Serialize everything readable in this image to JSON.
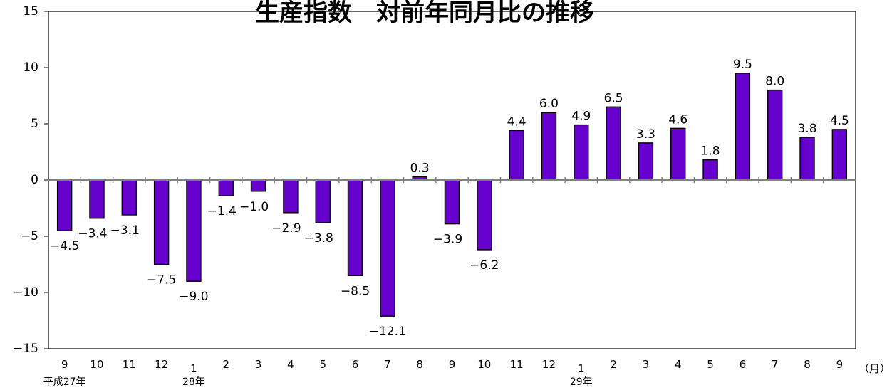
{
  "chart_data": {
    "type": "bar",
    "title": "生産指数　対前年同月比の推移",
    "categories": [
      "9",
      "10",
      "11",
      "12",
      "1",
      "2",
      "3",
      "4",
      "5",
      "6",
      "7",
      "8",
      "9",
      "10",
      "11",
      "12",
      "1",
      "2",
      "3",
      "4",
      "5",
      "6",
      "7",
      "8",
      "9"
    ],
    "values": [
      -4.5,
      -3.4,
      -3.1,
      -7.5,
      -9.0,
      -1.4,
      -1.0,
      -2.9,
      -3.8,
      -8.5,
      -12.1,
      0.3,
      -3.9,
      -6.2,
      4.4,
      6.0,
      4.9,
      6.5,
      3.3,
      4.6,
      1.8,
      9.5,
      8.0,
      3.8,
      4.5
    ],
    "value_labels": [
      "−4.5",
      "−3.4",
      "−3.1",
      "−7.5",
      "−9.0",
      "−1.4",
      "−1.0",
      "−2.9",
      "−3.8",
      "−8.5",
      "−12.1",
      "0.3",
      "−3.9",
      "−6.2",
      "4.4",
      "6.0",
      "4.9",
      "6.5",
      "3.3",
      "4.6",
      "1.8",
      "9.5",
      "8.0",
      "3.8",
      "4.5"
    ],
    "ylim": [
      -15,
      15
    ],
    "yticks": [
      15,
      10,
      5,
      0,
      -5,
      -10,
      -15
    ],
    "ytick_labels": [
      "15",
      "10",
      "5",
      "0",
      "−5",
      "−10",
      "−15"
    ],
    "x_unit": "（月）",
    "year_labels": [
      {
        "text": "平成27年",
        "index": 0
      },
      {
        "text": "28年",
        "index": 4
      },
      {
        "text": "29年",
        "index": 16
      }
    ],
    "grid": false,
    "legend": "none",
    "bar_color": "#6600CC",
    "bar_edge_color": "#000000"
  }
}
